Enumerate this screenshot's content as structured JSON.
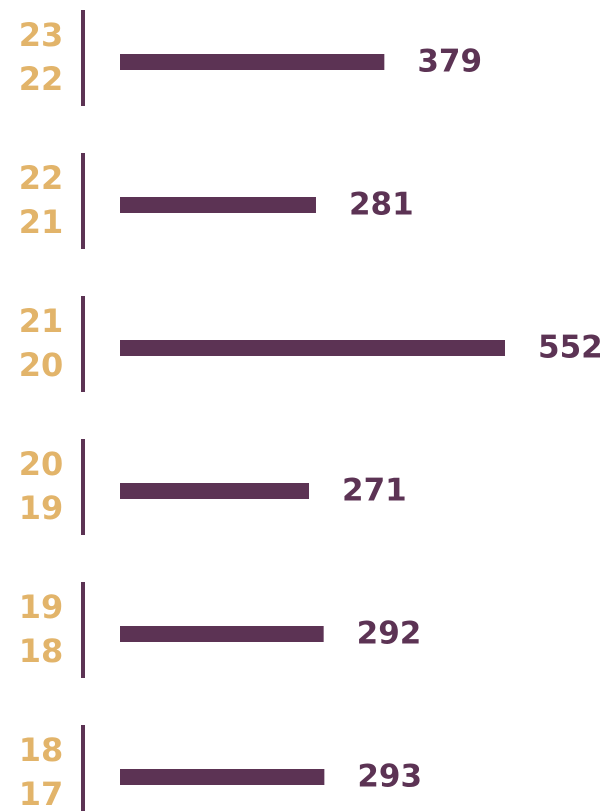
{
  "chart_data": {
    "type": "bar",
    "categories": [
      [
        "23",
        "22"
      ],
      [
        "22",
        "21"
      ],
      [
        "21",
        "20"
      ],
      [
        "20",
        "19"
      ],
      [
        "19",
        "18"
      ],
      [
        "18",
        "17"
      ]
    ],
    "values": [
      379,
      281,
      552,
      271,
      292,
      293
    ],
    "color": "#5c3354",
    "label_color": "#e2b46a"
  }
}
